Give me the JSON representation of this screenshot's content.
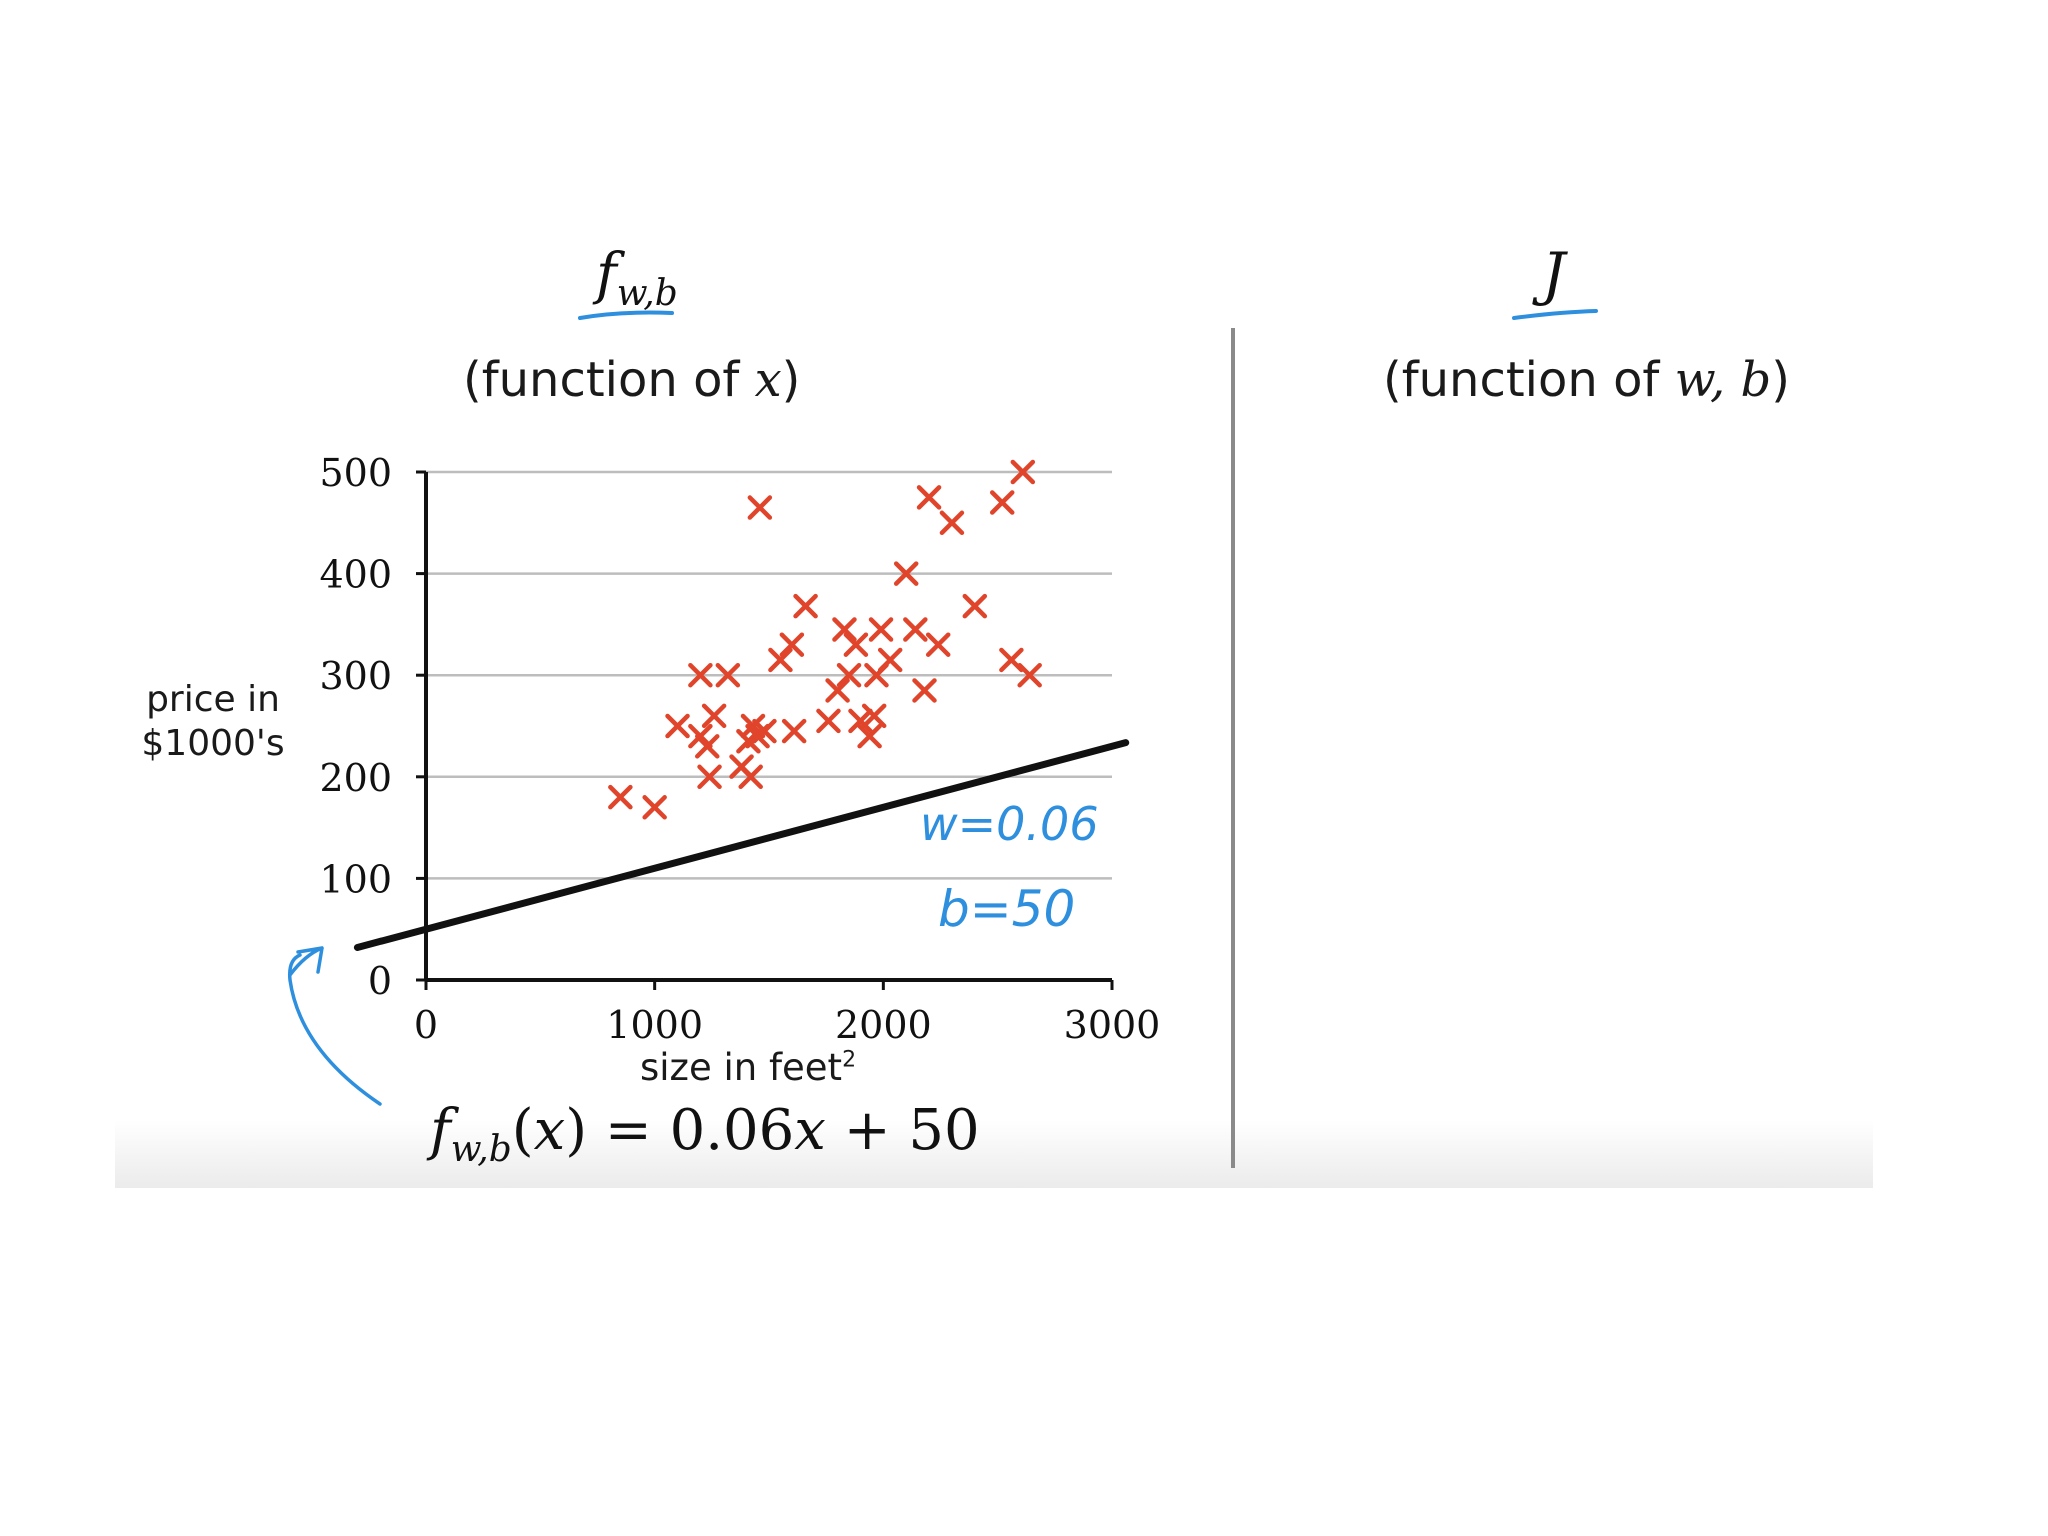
{
  "left_panel": {
    "title_f": "f",
    "title_sub": "w,b",
    "subtitle_prefix": "(function of ",
    "subtitle_var": "x",
    "subtitle_suffix": ")"
  },
  "right_panel": {
    "title": "J",
    "subtitle_prefix": "(function of ",
    "subtitle_var": "w, b",
    "subtitle_suffix": ")"
  },
  "colors": {
    "points": "#e0452b",
    "line": "#111111",
    "annotation": "#2d8fdd",
    "grid": "#bdbdbd"
  },
  "annotations": {
    "w": "w=0.06",
    "b": "b=50"
  },
  "equation": {
    "f": "f",
    "sub": "w,b",
    "rhs_open": "(",
    "rhs_var": "x",
    "rhs_close": ")",
    "rhs_expr": " = 0.06",
    "rhs_x": "x",
    "rhs_tail": " + 50"
  },
  "chart_data": {
    "type": "scatter",
    "xlabel_text": "size in feet",
    "xlabel_sup": "2",
    "ylabel_lines": [
      "price in",
      "$1000's"
    ],
    "xlim": [
      0,
      3000
    ],
    "ylim": [
      0,
      500
    ],
    "x_ticks": [
      0,
      1000,
      2000,
      3000
    ],
    "y_ticks": [
      0,
      100,
      200,
      300,
      400,
      500
    ],
    "grid": "horizontal",
    "points": [
      [
        850,
        180
      ],
      [
        1000,
        170
      ],
      [
        1100,
        250
      ],
      [
        1200,
        300
      ],
      [
        1200,
        240
      ],
      [
        1230,
        230
      ],
      [
        1240,
        200
      ],
      [
        1260,
        260
      ],
      [
        1320,
        300
      ],
      [
        1380,
        210
      ],
      [
        1410,
        235
      ],
      [
        1420,
        200
      ],
      [
        1430,
        250
      ],
      [
        1450,
        240
      ],
      [
        1460,
        465
      ],
      [
        1480,
        245
      ],
      [
        1550,
        315
      ],
      [
        1600,
        330
      ],
      [
        1610,
        245
      ],
      [
        1660,
        368
      ],
      [
        1760,
        255
      ],
      [
        1800,
        285
      ],
      [
        1830,
        345
      ],
      [
        1850,
        300
      ],
      [
        1880,
        330
      ],
      [
        1900,
        255
      ],
      [
        1940,
        240
      ],
      [
        1960,
        260
      ],
      [
        1970,
        300
      ],
      [
        1990,
        345
      ],
      [
        2030,
        315
      ],
      [
        2100,
        400
      ],
      [
        2140,
        345
      ],
      [
        2180,
        285
      ],
      [
        2200,
        475
      ],
      [
        2240,
        330
      ],
      [
        2300,
        450
      ],
      [
        2400,
        368
      ],
      [
        2520,
        470
      ],
      [
        2560,
        315
      ],
      [
        2610,
        500
      ],
      [
        2640,
        300
      ]
    ],
    "line": {
      "w": 0.06,
      "b": 50,
      "x_range": [
        -300,
        3060
      ]
    }
  }
}
